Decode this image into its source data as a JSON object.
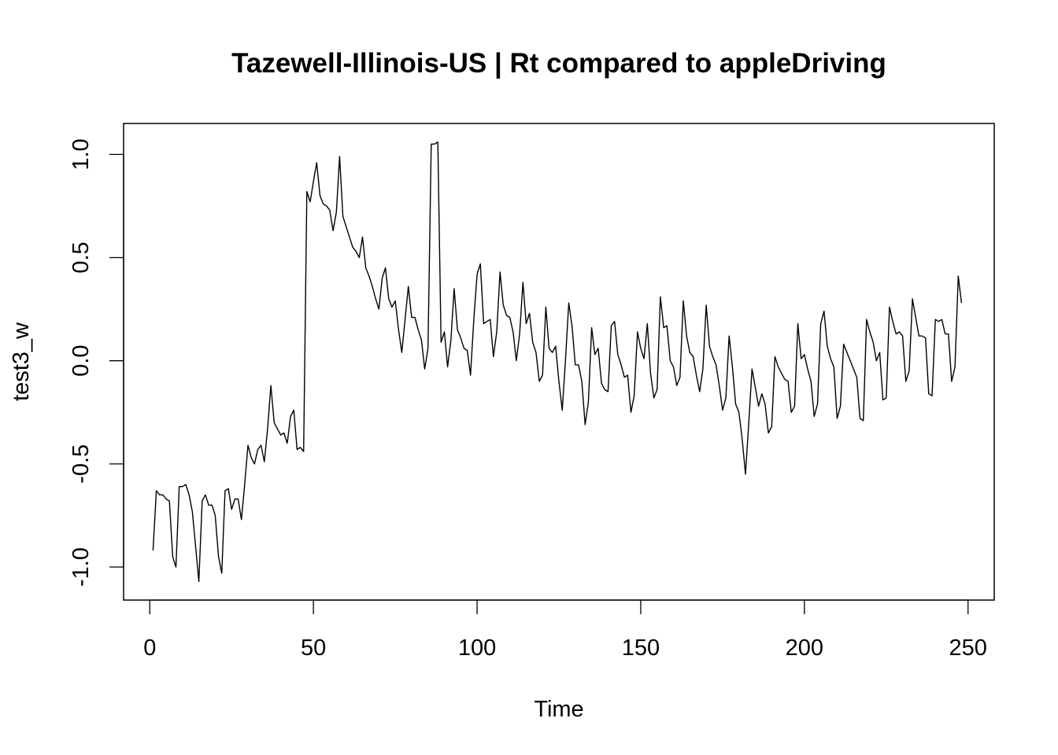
{
  "chart_data": {
    "type": "line",
    "title": "Tazewell-Illinois-US | Rt compared to appleDriving",
    "xlabel": "Time",
    "ylabel": "test3_w",
    "xlim": [
      -8,
      258
    ],
    "ylim": [
      -1.16,
      1.15
    ],
    "x_ticks": [
      0,
      50,
      100,
      150,
      200,
      250
    ],
    "y_ticks": [
      -1.0,
      -0.5,
      0.0,
      0.5,
      1.0
    ],
    "y_tick_labels": [
      "-1.0",
      "-0.5",
      "0.0",
      "0.5",
      "1.0"
    ],
    "x_start": 1,
    "grid": false,
    "series": [
      {
        "color": "#000000",
        "values": [
          -0.92,
          -0.63,
          -0.65,
          -0.65,
          -0.67,
          -0.68,
          -0.95,
          -1.0,
          -0.61,
          -0.61,
          -0.6,
          -0.65,
          -0.73,
          -0.9,
          -1.07,
          -0.68,
          -0.65,
          -0.7,
          -0.7,
          -0.75,
          -0.95,
          -1.03,
          -0.63,
          -0.62,
          -0.72,
          -0.67,
          -0.67,
          -0.77,
          -0.6,
          -0.41,
          -0.47,
          -0.5,
          -0.43,
          -0.41,
          -0.49,
          -0.33,
          -0.12,
          -0.3,
          -0.33,
          -0.36,
          -0.35,
          -0.4,
          -0.27,
          -0.24,
          -0.43,
          -0.42,
          -0.44,
          0.82,
          0.77,
          0.87,
          0.96,
          0.8,
          0.76,
          0.75,
          0.73,
          0.63,
          0.72,
          0.99,
          0.7,
          0.65,
          0.6,
          0.55,
          0.53,
          0.5,
          0.6,
          0.45,
          0.41,
          0.36,
          0.3,
          0.25,
          0.4,
          0.45,
          0.3,
          0.26,
          0.29,
          0.15,
          0.04,
          0.2,
          0.36,
          0.21,
          0.21,
          0.15,
          0.1,
          -0.04,
          0.06,
          1.05,
          1.05,
          1.06,
          0.09,
          0.14,
          -0.03,
          0.1,
          0.35,
          0.15,
          0.11,
          0.06,
          0.05,
          -0.07,
          0.2,
          0.42,
          0.47,
          0.18,
          0.19,
          0.2,
          0.02,
          0.14,
          0.43,
          0.27,
          0.22,
          0.21,
          0.14,
          0.0,
          0.13,
          0.38,
          0.18,
          0.23,
          0.09,
          0.04,
          -0.1,
          -0.07,
          0.26,
          0.06,
          0.04,
          0.07,
          -0.1,
          -0.24,
          0.0,
          0.28,
          0.17,
          -0.02,
          -0.02,
          -0.1,
          -0.31,
          -0.2,
          0.16,
          0.03,
          0.06,
          -0.11,
          -0.14,
          -0.15,
          0.17,
          0.19,
          0.03,
          -0.02,
          -0.08,
          -0.07,
          -0.25,
          -0.17,
          0.14,
          0.06,
          0.01,
          0.18,
          -0.06,
          -0.18,
          -0.14,
          0.31,
          0.16,
          0.17,
          0.0,
          -0.03,
          -0.12,
          -0.08,
          0.29,
          0.12,
          0.04,
          0.02,
          -0.07,
          -0.15,
          -0.04,
          0.27,
          0.07,
          0.02,
          -0.02,
          -0.12,
          -0.24,
          -0.18,
          0.12,
          -0.03,
          -0.21,
          -0.25,
          -0.38,
          -0.55,
          -0.3,
          -0.04,
          -0.13,
          -0.22,
          -0.16,
          -0.21,
          -0.35,
          -0.32,
          0.02,
          -0.03,
          -0.06,
          -0.09,
          -0.1,
          -0.25,
          -0.22,
          0.18,
          0.01,
          0.03,
          -0.04,
          -0.1,
          -0.27,
          -0.21,
          0.18,
          0.24,
          0.07,
          0.01,
          -0.03,
          -0.28,
          -0.22,
          0.08,
          0.04,
          0.0,
          -0.04,
          -0.08,
          -0.28,
          -0.29,
          0.2,
          0.14,
          0.09,
          0.0,
          0.04,
          -0.19,
          -0.18,
          0.26,
          0.19,
          0.13,
          0.14,
          0.12,
          -0.1,
          -0.05,
          0.3,
          0.21,
          0.12,
          0.12,
          0.11,
          -0.16,
          -0.17,
          0.2,
          0.19,
          0.2,
          0.13,
          0.13,
          -0.1,
          -0.03,
          0.41,
          0.28
        ]
      }
    ]
  }
}
